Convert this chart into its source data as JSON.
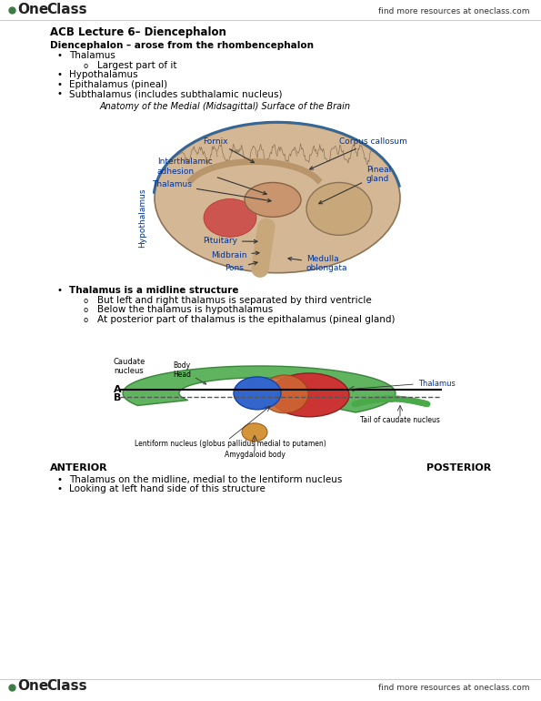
{
  "page_width": 5.95,
  "page_height": 7.7,
  "dpi": 100,
  "bg_color": "#ffffff",
  "header_right_text": "find more resources at oneclass.com",
  "footer_right_text": "find more resources at oneclass.com",
  "title_line1": "ACB Lecture 6– Diencephalon",
  "intro_line": "Diencephalon – arose from the rhombencephalon",
  "bullets": [
    {
      "level": 1,
      "text": "Thalamus"
    },
    {
      "level": 2,
      "text": "Largest part of it"
    },
    {
      "level": 1,
      "text": "Hypothalamus"
    },
    {
      "level": 1,
      "text": "Epithalamus (pineal)"
    },
    {
      "level": 1,
      "text": "Subthalamus (includes subthalamic nucleus)"
    }
  ],
  "anatomy_caption": "Anatomy of the Medial (Midsagittal) Surface of the Brain",
  "thalamus_bullets": [
    {
      "level": 1,
      "text": "Thalamus is a midline structure"
    },
    {
      "level": 2,
      "text": "But left and right thalamus is separated by third ventricle"
    },
    {
      "level": 2,
      "text": "Below the thalamus is hypothalamus"
    },
    {
      "level": 2,
      "text": "At posterior part of thalamus is the epithalamus (pineal gland)"
    }
  ],
  "bottom_labels": [
    {
      "text": "Thalamus on the midline, medial to the lentiform nucleus",
      "level": 1
    },
    {
      "text": "Looking at left hand side of this structure",
      "level": 1
    }
  ],
  "anterior_label": "ANTERIOR",
  "posterior_label": "POSTERIOR",
  "text_color": "#000000",
  "blue_label_color": "#003399",
  "font_size_body": 7.5,
  "font_size_title": 8.5,
  "logo_green": "#3a7d44"
}
